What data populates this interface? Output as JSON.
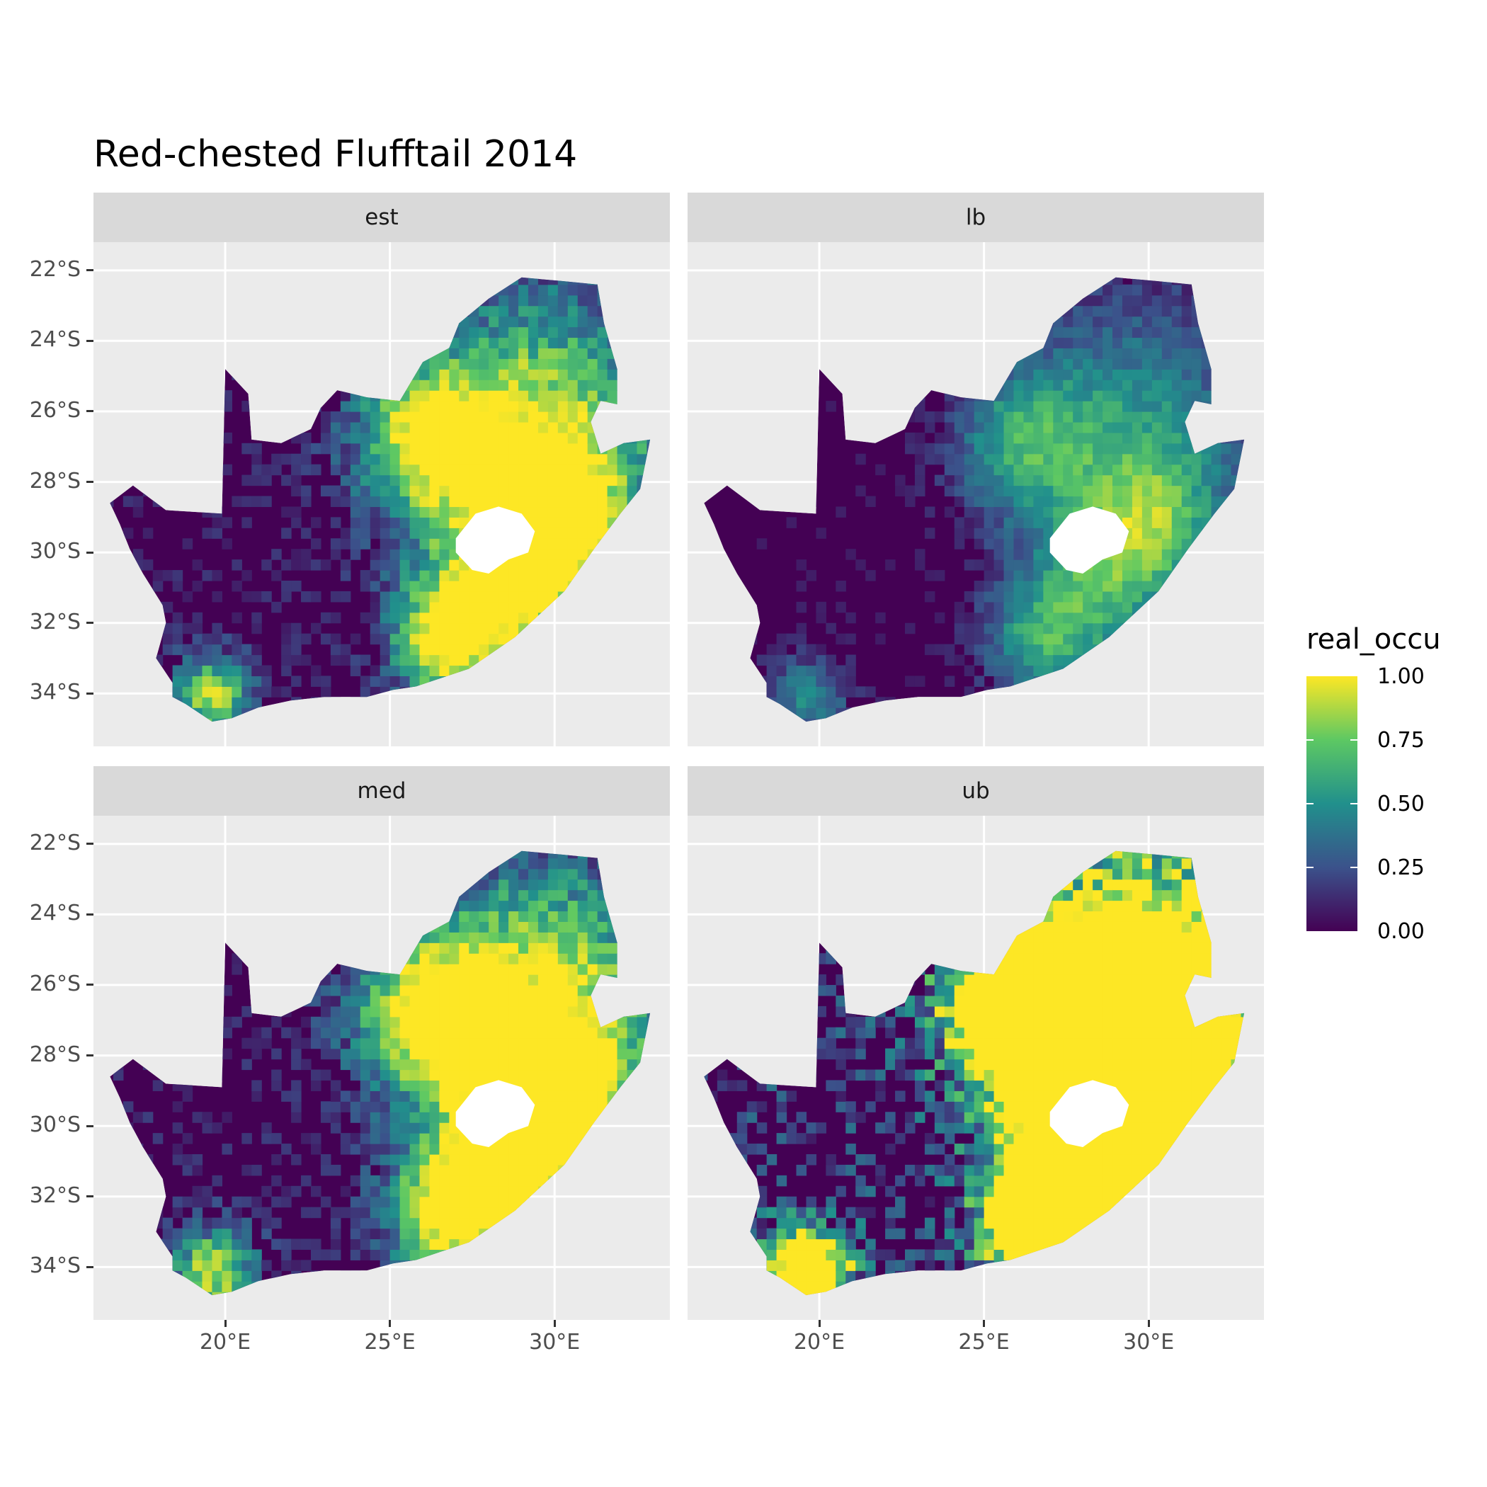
{
  "figure": {
    "title": "Red-chested Flufftail 2014"
  },
  "map": {
    "lon_range": [
      16,
      33.5
    ],
    "lat_range": [
      -35.5,
      -21.2
    ],
    "x_ticks": [
      {
        "value": 20,
        "label": "20°E"
      },
      {
        "value": 25,
        "label": "25°E"
      },
      {
        "value": 30,
        "label": "30°E"
      }
    ],
    "y_ticks": [
      {
        "value": -22,
        "label": "22°S"
      },
      {
        "value": -24,
        "label": "24°S"
      },
      {
        "value": -26,
        "label": "26°S"
      },
      {
        "value": -28,
        "label": "28°S"
      },
      {
        "value": -30,
        "label": "30°S"
      },
      {
        "value": -32,
        "label": "32°S"
      },
      {
        "value": -34,
        "label": "34°S"
      }
    ],
    "panels": [
      {
        "label": "est"
      },
      {
        "label": "lb"
      },
      {
        "label": "med"
      },
      {
        "label": "ub"
      }
    ],
    "country_outline": [
      [
        16.5,
        -28.6
      ],
      [
        17.2,
        -28.1
      ],
      [
        18.2,
        -28.8
      ],
      [
        19.9,
        -28.9
      ],
      [
        20.0,
        -24.8
      ],
      [
        20.7,
        -25.5
      ],
      [
        20.8,
        -26.8
      ],
      [
        21.7,
        -26.9
      ],
      [
        22.6,
        -26.5
      ],
      [
        22.9,
        -25.9
      ],
      [
        23.4,
        -25.4
      ],
      [
        24.3,
        -25.6
      ],
      [
        25.3,
        -25.7
      ],
      [
        26.0,
        -24.6
      ],
      [
        26.8,
        -24.2
      ],
      [
        27.1,
        -23.5
      ],
      [
        28.0,
        -22.8
      ],
      [
        29.0,
        -22.2
      ],
      [
        30.2,
        -22.3
      ],
      [
        31.3,
        -22.4
      ],
      [
        31.5,
        -23.5
      ],
      [
        31.9,
        -24.8
      ],
      [
        31.9,
        -25.8
      ],
      [
        31.4,
        -25.7
      ],
      [
        31.1,
        -26.3
      ],
      [
        31.4,
        -27.2
      ],
      [
        32.1,
        -26.9
      ],
      [
        32.9,
        -26.8
      ],
      [
        32.6,
        -28.2
      ],
      [
        32.0,
        -28.9
      ],
      [
        31.2,
        -29.9
      ],
      [
        30.3,
        -31.1
      ],
      [
        28.8,
        -32.4
      ],
      [
        27.4,
        -33.3
      ],
      [
        25.8,
        -33.8
      ],
      [
        25.1,
        -33.9
      ],
      [
        24.3,
        -34.1
      ],
      [
        23.0,
        -34.1
      ],
      [
        22.0,
        -34.2
      ],
      [
        21.0,
        -34.4
      ],
      [
        20.2,
        -34.7
      ],
      [
        19.6,
        -34.8
      ],
      [
        18.8,
        -34.3
      ],
      [
        18.4,
        -34.1
      ],
      [
        18.4,
        -33.7
      ],
      [
        17.9,
        -33.0
      ],
      [
        18.2,
        -32.0
      ],
      [
        18.1,
        -31.5
      ],
      [
        17.5,
        -30.6
      ],
      [
        17.1,
        -29.9
      ],
      [
        16.8,
        -29.2
      ]
    ],
    "lesotho_outline": [
      [
        27.0,
        -29.6
      ],
      [
        27.6,
        -28.9
      ],
      [
        28.3,
        -28.7
      ],
      [
        29.0,
        -28.9
      ],
      [
        29.4,
        -29.4
      ],
      [
        29.2,
        -30.0
      ],
      [
        28.6,
        -30.2
      ],
      [
        28.0,
        -30.6
      ],
      [
        27.5,
        -30.5
      ],
      [
        27.0,
        -30.0
      ]
    ]
  },
  "legend": {
    "title": "real_occu",
    "ticks": [
      "0.00",
      "0.25",
      "0.50",
      "0.75",
      "1.00"
    ],
    "colors": [
      "#440154",
      "#3b528b",
      "#21908c",
      "#5dc863",
      "#fde725"
    ]
  },
  "style": {
    "panel_bg": "#ebebeb",
    "grid": "#ffffff",
    "strip_bg": "#d9d9d9"
  }
}
